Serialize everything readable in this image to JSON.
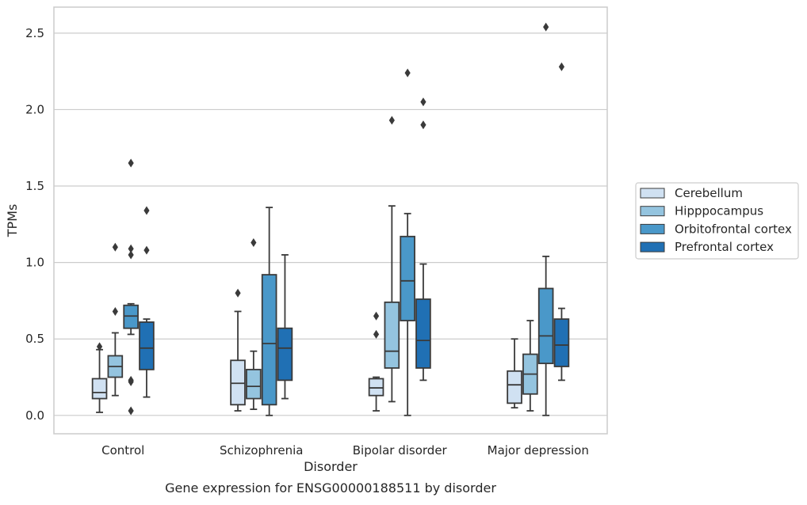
{
  "chart_data": {
    "type": "box",
    "caption": "Gene expression for ENSG00000188511 by disorder",
    "xlabel": "Disorder",
    "ylabel": "TPMs",
    "ylim": [
      -0.12,
      2.67
    ],
    "yticks": [
      0.0,
      0.5,
      1.0,
      1.5,
      2.0,
      2.5
    ],
    "ytick_labels": [
      "0.0",
      "0.5",
      "1.0",
      "1.5",
      "2.0",
      "2.5"
    ],
    "grid": "horizontal",
    "legend_position": "right",
    "categories": [
      "Control",
      "Schizophrenia",
      "Bipolar disorder",
      "Major depression"
    ],
    "series": [
      {
        "name": "Cerebellum",
        "color": "#d0e1f2",
        "boxes": [
          {
            "whisker_low": 0.02,
            "q1": 0.11,
            "median": 0.15,
            "q3": 0.24,
            "whisker_high": 0.43,
            "outliers": [
              0.45
            ]
          },
          {
            "whisker_low": 0.03,
            "q1": 0.07,
            "median": 0.21,
            "q3": 0.36,
            "whisker_high": 0.68,
            "outliers": [
              0.8
            ]
          },
          {
            "whisker_low": 0.03,
            "q1": 0.13,
            "median": 0.18,
            "q3": 0.24,
            "whisker_high": 0.25,
            "outliers": [
              0.53,
              0.65
            ]
          },
          {
            "whisker_low": 0.05,
            "q1": 0.08,
            "median": 0.2,
            "q3": 0.29,
            "whisker_high": 0.5,
            "outliers": []
          }
        ]
      },
      {
        "name": "Hipppocampus",
        "color": "#94c4df",
        "boxes": [
          {
            "whisker_low": 0.13,
            "q1": 0.25,
            "median": 0.32,
            "q3": 0.39,
            "whisker_high": 0.54,
            "outliers": [
              0.68,
              1.1
            ]
          },
          {
            "whisker_low": 0.04,
            "q1": 0.11,
            "median": 0.19,
            "q3": 0.3,
            "whisker_high": 0.42,
            "outliers": [
              1.13
            ]
          },
          {
            "whisker_low": 0.09,
            "q1": 0.31,
            "median": 0.42,
            "q3": 0.74,
            "whisker_high": 1.37,
            "outliers": [
              1.93
            ]
          },
          {
            "whisker_low": 0.03,
            "q1": 0.14,
            "median": 0.27,
            "q3": 0.4,
            "whisker_high": 0.62,
            "outliers": []
          }
        ]
      },
      {
        "name": "Orbitofrontal cortex",
        "color": "#4a98c9",
        "boxes": [
          {
            "whisker_low": 0.53,
            "q1": 0.57,
            "median": 0.65,
            "q3": 0.72,
            "whisker_high": 0.73,
            "outliers": [
              0.03,
              0.22,
              0.23,
              1.05,
              1.09,
              1.65
            ]
          },
          {
            "whisker_low": 0.0,
            "q1": 0.07,
            "median": 0.47,
            "q3": 0.92,
            "whisker_high": 1.36,
            "outliers": []
          },
          {
            "whisker_low": 0.0,
            "q1": 0.62,
            "median": 0.88,
            "q3": 1.17,
            "whisker_high": 1.32,
            "outliers": [
              2.24
            ]
          },
          {
            "whisker_low": 0.0,
            "q1": 0.34,
            "median": 0.52,
            "q3": 0.83,
            "whisker_high": 1.04,
            "outliers": [
              2.54
            ]
          }
        ]
      },
      {
        "name": "Prefrontal cortex",
        "color": "#2070b4",
        "boxes": [
          {
            "whisker_low": 0.12,
            "q1": 0.3,
            "median": 0.44,
            "q3": 0.61,
            "whisker_high": 0.63,
            "outliers": [
              1.08,
              1.34
            ]
          },
          {
            "whisker_low": 0.11,
            "q1": 0.23,
            "median": 0.44,
            "q3": 0.57,
            "whisker_high": 1.05,
            "outliers": []
          },
          {
            "whisker_low": 0.23,
            "q1": 0.31,
            "median": 0.49,
            "q3": 0.76,
            "whisker_high": 0.99,
            "outliers": [
              1.9,
              2.05
            ]
          },
          {
            "whisker_low": 0.23,
            "q1": 0.32,
            "median": 0.46,
            "q3": 0.63,
            "whisker_high": 0.7,
            "outliers": [
              2.28
            ]
          }
        ]
      }
    ]
  }
}
